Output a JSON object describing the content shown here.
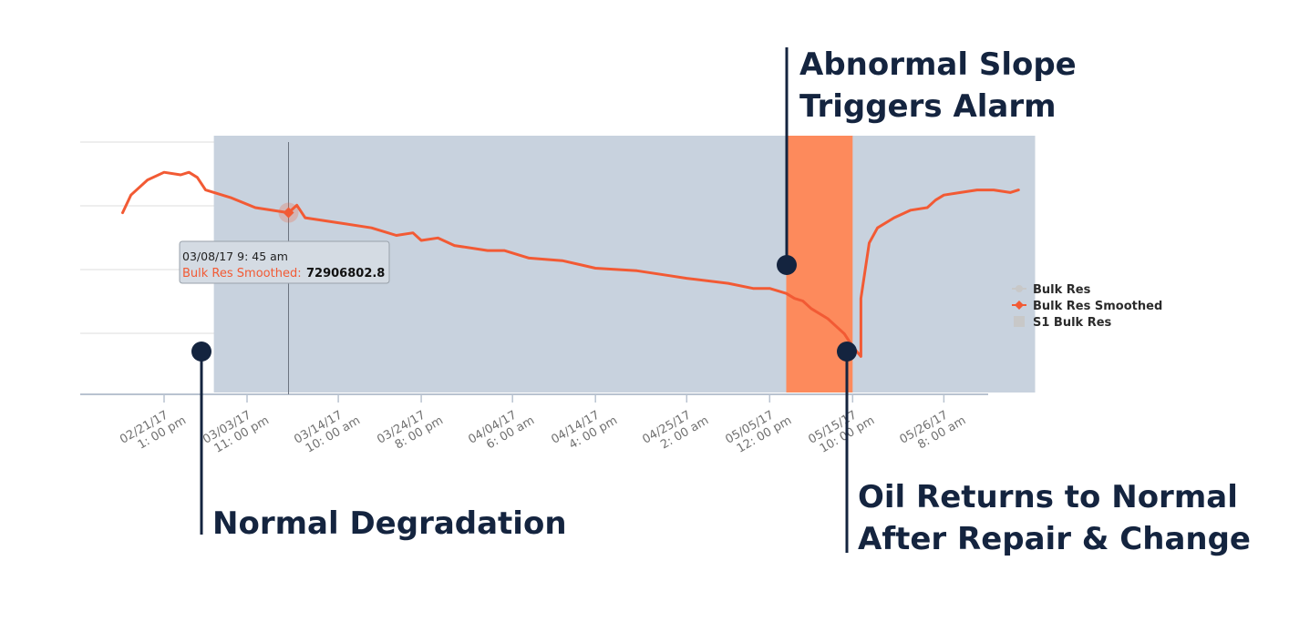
{
  "colors": {
    "series": "#f25a34",
    "alarm_band": "#fd8a5c",
    "selection_band": "#c5d0dc",
    "annotation": "#14243f",
    "legend_gray": "#c8c8c8"
  },
  "annotations": {
    "normal": "Normal Degradation",
    "abnormal_line1": "Abnormal Slope",
    "abnormal_line2": "Triggers Alarm",
    "returns_line1": "Oil Returns to Normal",
    "returns_line2": "After Repair & Change"
  },
  "tooltip": {
    "date": "03/08/17 9: 45 am",
    "series": "Bulk Res Smoothed:",
    "value": "72906802.8"
  },
  "legend": {
    "items": [
      "Bulk Res",
      "Bulk Res Smoothed",
      "S1 Bulk Res"
    ]
  },
  "chart_data": {
    "type": "line",
    "title": "",
    "xlabel": "",
    "ylabel": "",
    "grid": true,
    "legend_position": "right",
    "x_tick_labels": [
      [
        "02/21/17",
        "1: 00 pm"
      ],
      [
        "03/03/17",
        "11: 00 pm"
      ],
      [
        "03/14/17",
        "10: 00 am"
      ],
      [
        "03/24/17",
        "8: 00 pm"
      ],
      [
        "04/04/17",
        "6: 00 am"
      ],
      [
        "04/14/17",
        "4: 00 pm"
      ],
      [
        "04/25/17",
        "2: 00 am"
      ],
      [
        "05/05/17",
        "12: 00 pm"
      ],
      [
        "05/15/17",
        "10: 00 pm"
      ],
      [
        "05/26/17",
        "8: 00 am"
      ]
    ],
    "series": [
      {
        "name": "Bulk Res Smoothed",
        "points": [
          [
            "02/16/17",
            0.72
          ],
          [
            "02/17/17",
            0.79
          ],
          [
            "02/19/17",
            0.85
          ],
          [
            "02/21/17",
            0.88
          ],
          [
            "02/23/17",
            0.87
          ],
          [
            "02/24/17",
            0.88
          ],
          [
            "02/25/17",
            0.86
          ],
          [
            "02/26/17",
            0.81
          ],
          [
            "03/01/17",
            0.78
          ],
          [
            "03/04/17",
            0.74
          ],
          [
            "03/08/17",
            0.72
          ],
          [
            "03/09/17",
            0.75
          ],
          [
            "03/10/17",
            0.7
          ],
          [
            "03/14/17",
            0.68
          ],
          [
            "03/18/17",
            0.66
          ],
          [
            "03/21/17",
            0.63
          ],
          [
            "03/23/17",
            0.64
          ],
          [
            "03/24/17",
            0.61
          ],
          [
            "03/26/17",
            0.62
          ],
          [
            "03/28/17",
            0.59
          ],
          [
            "04/01/17",
            0.57
          ],
          [
            "04/03/17",
            0.57
          ],
          [
            "04/06/17",
            0.54
          ],
          [
            "04/10/17",
            0.53
          ],
          [
            "04/14/17",
            0.5
          ],
          [
            "04/19/17",
            0.49
          ],
          [
            "04/23/17",
            0.47
          ],
          [
            "04/25/17",
            0.46
          ],
          [
            "04/30/17",
            0.44
          ],
          [
            "05/03/17",
            0.42
          ],
          [
            "05/05/17",
            0.42
          ],
          [
            "05/07/17",
            0.4
          ],
          [
            "05/08/17",
            0.38
          ],
          [
            "05/09/17",
            0.37
          ],
          [
            "05/10/17",
            0.34
          ],
          [
            "05/12/17",
            0.3
          ],
          [
            "05/13/17",
            0.27
          ],
          [
            "05/14/17",
            0.24
          ],
          [
            "05/15/17",
            0.19
          ],
          [
            "05/16/17",
            0.15
          ],
          [
            "05/16/17",
            0.38
          ],
          [
            "05/17/17",
            0.6
          ],
          [
            "05/18/17",
            0.66
          ],
          [
            "05/20/17",
            0.7
          ],
          [
            "05/22/17",
            0.73
          ],
          [
            "05/24/17",
            0.74
          ],
          [
            "05/25/17",
            0.77
          ],
          [
            "05/26/17",
            0.79
          ],
          [
            "05/28/17",
            0.8
          ],
          [
            "05/30/17",
            0.81
          ],
          [
            "06/01/17",
            0.81
          ],
          [
            "06/03/17",
            0.8
          ],
          [
            "06/04/17",
            0.81
          ]
        ]
      }
    ],
    "highlight_ranges": [
      {
        "role": "selection",
        "from": "02/27/17",
        "to": "06/06/17"
      },
      {
        "role": "alarm",
        "from": "05/07/17",
        "to": "05/15/17"
      }
    ],
    "crosshair_x": "03/08/17"
  }
}
